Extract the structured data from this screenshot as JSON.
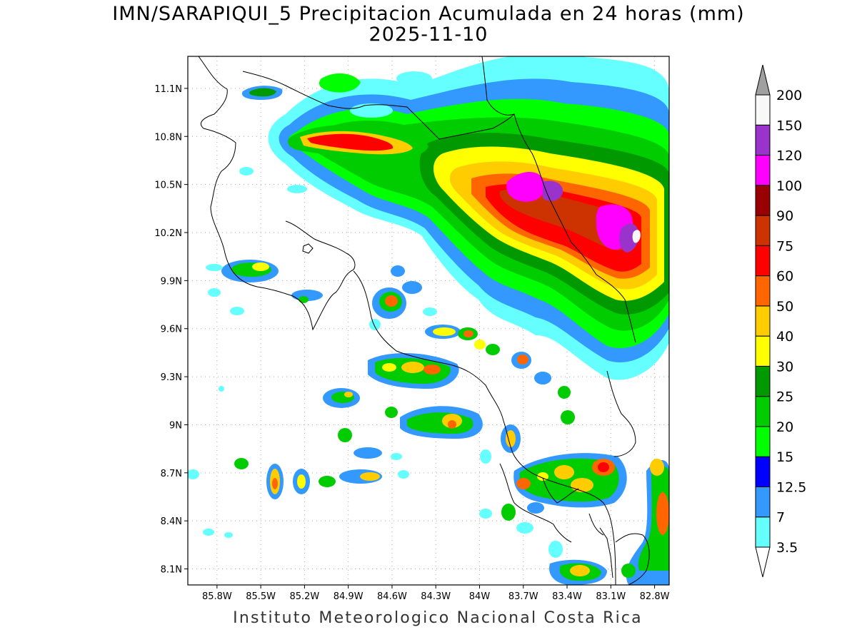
{
  "title": "IMN/SARAPIQUI_5 Precipitacion Acumulada en 24 horas (mm)",
  "date": "2025-11-10",
  "footer": "Instituto Meteorologico Nacional Costa Rica",
  "map": {
    "lon_range": [
      -86.0,
      -82.7
    ],
    "lat_range": [
      8.0,
      11.3
    ],
    "lon_ticks": [
      "85.8W",
      "85.5W",
      "85.2W",
      "84.9W",
      "84.6W",
      "84.3W",
      "84W",
      "83.7W",
      "83.4W",
      "83.1W",
      "82.8W"
    ],
    "lon_values": [
      -85.8,
      -85.5,
      -85.2,
      -84.9,
      -84.6,
      -84.3,
      -84.0,
      -83.7,
      -83.4,
      -83.1,
      -82.8
    ],
    "lat_ticks": [
      "11.1N",
      "10.8N",
      "10.5N",
      "10.2N",
      "9.9N",
      "9.6N",
      "9.3N",
      "9N",
      "8.7N",
      "8.4N",
      "8.1N"
    ],
    "lat_values": [
      11.1,
      10.8,
      10.5,
      10.2,
      9.9,
      9.6,
      9.3,
      9.0,
      8.7,
      8.4,
      8.1
    ],
    "grid": true
  },
  "colorbar": {
    "labels": [
      "3.5",
      "7",
      "12.5",
      "15",
      "20",
      "25",
      "30",
      "40",
      "50",
      "60",
      "75",
      "90",
      "100",
      "120",
      "150",
      "200"
    ],
    "colors": [
      "#66ffff",
      "#3399ff",
      "#0000ff",
      "#00ff00",
      "#00cc00",
      "#009900",
      "#ffff00",
      "#ffcc00",
      "#ff6600",
      "#ff0000",
      "#cc3300",
      "#990000",
      "#ff00ff",
      "#9933cc",
      "#f8f8f8",
      "#a0a0a0"
    ]
  }
}
